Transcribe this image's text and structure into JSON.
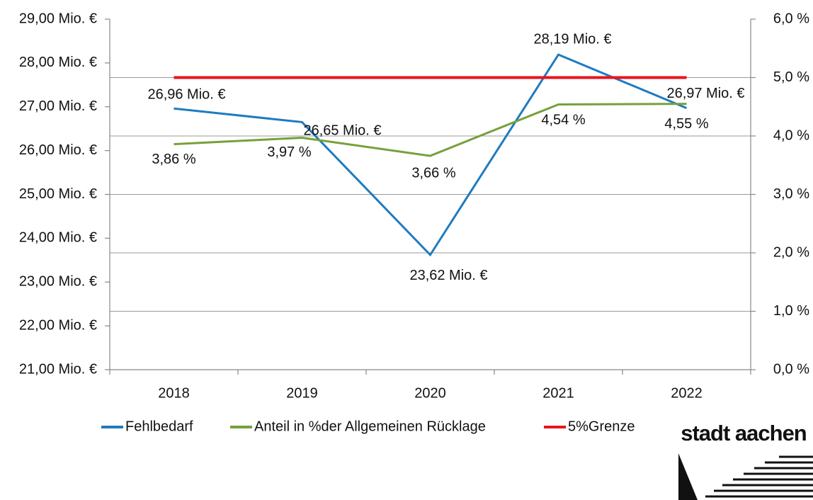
{
  "chart_data": {
    "type": "line",
    "categories": [
      "2018",
      "2019",
      "2020",
      "2021",
      "2022"
    ],
    "series": [
      {
        "name": "Fehlbedarf",
        "color": "#1f7bc0",
        "axis": "y",
        "values": [
          26.96,
          26.65,
          23.62,
          28.19,
          26.97
        ],
        "value_labels": [
          "26,96 Mio. €",
          "26,65 Mio. €",
          "23,62 Mio. €",
          "28,19 Mio. €",
          "26,97 Mio. €"
        ]
      },
      {
        "name": "Anteil in %der Allgemeinen Rücklage",
        "color": "#77a03c",
        "axis": "y2",
        "values": [
          3.86,
          3.97,
          3.66,
          4.54,
          4.55
        ],
        "value_labels": [
          "3,86 %",
          "3,97 %",
          "3,66 %",
          "4,54 %",
          "4,55 %"
        ]
      },
      {
        "name": "5%Grenze",
        "color": "#e8141c",
        "axis": "y2",
        "values": [
          5,
          5,
          5,
          5,
          5
        ]
      }
    ],
    "ylim": [
      21,
      29
    ],
    "yticks": [
      {
        "value": 21,
        "label": "21,00 Mio. €"
      },
      {
        "value": 22,
        "label": "22,00 Mio. €"
      },
      {
        "value": 23,
        "label": "23,00 Mio. €"
      },
      {
        "value": 24,
        "label": "24,00 Mio. €"
      },
      {
        "value": 25,
        "label": "25,00 Mio. €"
      },
      {
        "value": 26,
        "label": "26,00 Mio. €"
      },
      {
        "value": 27,
        "label": "27,00 Mio. €"
      },
      {
        "value": 28,
        "label": "28,00 Mio. €"
      },
      {
        "value": 29,
        "label": "29,00 Mio. €"
      }
    ],
    "y2lim": [
      0,
      6
    ],
    "y2ticks": [
      {
        "value": 0,
        "label": "0,0 %"
      },
      {
        "value": 1,
        "label": "1,0 %"
      },
      {
        "value": 2,
        "label": "2,0 %"
      },
      {
        "value": 3,
        "label": "3,0 %"
      },
      {
        "value": 4,
        "label": "4,0 %"
      },
      {
        "value": 5,
        "label": "5,0 %"
      },
      {
        "value": 6,
        "label": "6,0 %"
      }
    ],
    "grid": true,
    "legend": "bottom"
  },
  "logo": {
    "text": "stadt aachen"
  }
}
